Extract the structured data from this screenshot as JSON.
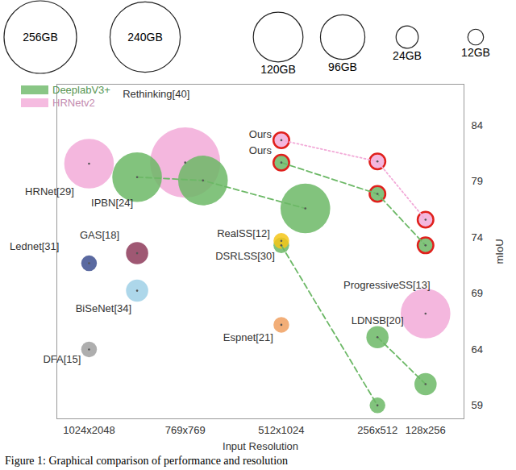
{
  "chart_data": {
    "type": "bubble",
    "x_label": "Input Resolution",
    "y_label": "mIoU",
    "caption": "Figure 1: Graphical comparison of performance and resolution",
    "xlim": [
      -0.67,
      7.8
    ],
    "xticks": [
      {
        "value": 0,
        "label": "1024x2048"
      },
      {
        "value": 2,
        "label": "769x769"
      },
      {
        "value": 4,
        "label": "512x1024"
      },
      {
        "value": 6,
        "label": "256x512"
      },
      {
        "value": 7,
        "label": "128x256"
      }
    ],
    "ylim": [
      57.8,
      87.7
    ],
    "yticks": [
      59,
      64,
      69,
      74,
      79,
      84
    ],
    "grid": false,
    "legend": "top-left",
    "size_legend": [
      {
        "value": 256,
        "label": "256GB"
      },
      {
        "value": 240,
        "label": "240GB"
      },
      {
        "value": 120,
        "label": "120GB"
      },
      {
        "value": 96,
        "label": "96GB"
      },
      {
        "value": 24,
        "label": "24GB"
      },
      {
        "value": 12,
        "label": "12GB"
      }
    ],
    "series": [
      {
        "name": "DeeplabV3+",
        "color": "#6cb866",
        "line_style": "dashed",
        "groups": [
          [
            {
              "label": "IPBN[24]",
              "x": 1,
              "y": 79.4,
              "size": 120
            },
            {
              "x": 2.37,
              "y": 79.1,
              "size": 120
            },
            {
              "x": 4.5,
              "y": 76.6,
              "size": 120
            }
          ],
          [
            {
              "label": "Ours",
              "x": 4,
              "y": 80.7,
              "size": 12,
              "marker": "ringed"
            },
            {
              "x": 6,
              "y": 77.9,
              "size": 12,
              "marker": "ringed"
            },
            {
              "x": 7,
              "y": 73.3,
              "size": 12,
              "marker": "ringed"
            }
          ],
          [
            {
              "label": "DSRLSS[30]",
              "x": 4,
              "y": 73.3,
              "size": 12
            },
            {
              "x": 6,
              "y": 59,
              "size": 12
            }
          ],
          [
            {
              "label": "LDNSB[20]",
              "x": 6,
              "y": 65.1,
              "size": 24
            },
            {
              "x": 7,
              "y": 60.9,
              "size": 24
            }
          ]
        ]
      },
      {
        "name": "HRNetv2",
        "color": "#f2aad8",
        "line_style": "dotted",
        "groups": [
          [
            {
              "label": "HRNet[29]",
              "x": 0,
              "y": 80.6,
              "size": 120
            }
          ],
          [
            {
              "label": "Rethinking[40]",
              "x": 2,
              "y": 80.7,
              "size": 240
            }
          ],
          [
            {
              "label": "Ours",
              "x": 4,
              "y": 82.7,
              "size": 12,
              "marker": "ringed"
            },
            {
              "x": 6,
              "y": 80.8,
              "size": 12,
              "marker": "ringed"
            },
            {
              "x": 7,
              "y": 75.6,
              "size": 12,
              "marker": "ringed"
            }
          ],
          [
            {
              "label": "ProgressiveSS[13]",
              "x": 7,
              "y": 67.2,
              "size": 120
            }
          ]
        ]
      }
    ],
    "others": [
      {
        "label": "RealSS[12]",
        "x": 4,
        "y": 73.7,
        "size": 12,
        "color": "#f5c518"
      },
      {
        "label": "GAS[18]",
        "x": 1,
        "y": 72.6,
        "size": 24,
        "color": "#8e3b5a"
      },
      {
        "label": "Lednet[31]",
        "x": 0,
        "y": 71.7,
        "size": 12,
        "color": "#3d4f8f"
      },
      {
        "label": "BiSeNet[34]",
        "x": 1,
        "y": 69.25,
        "size": 24,
        "color": "#9fd0e6"
      },
      {
        "label": "Espnet[21]",
        "x": 4,
        "y": 66.2,
        "size": 12,
        "color": "#f0a060"
      },
      {
        "label": "DFA[15]",
        "x": 0,
        "y": 64,
        "size": 12,
        "color": "#a0a0a0"
      }
    ]
  }
}
